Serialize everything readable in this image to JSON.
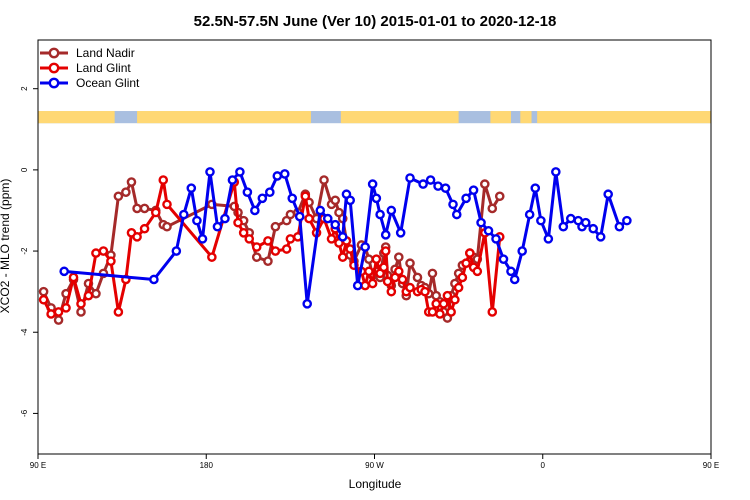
{
  "chart_data": {
    "type": "line",
    "title": "52.5N-57.5N June (Ver 10)   2015-01-01 to 2020-12-18",
    "xlabel": "Longitude",
    "ylabel": "XCO2 - MLO trend (ppm)",
    "xlim": [
      90,
      450
    ],
    "ylim": [
      -7,
      3.2
    ],
    "x_ticks": [
      {
        "value": 90,
        "label": "90 E"
      },
      {
        "value": 180,
        "label": "180"
      },
      {
        "value": 270,
        "label": "90 W"
      },
      {
        "value": 360,
        "label": "0"
      },
      {
        "value": 450,
        "label": "90 E"
      },
      {
        "value": 540,
        "label": "180"
      }
    ],
    "y_ticks": [
      2,
      0,
      -2,
      -4,
      -6
    ],
    "grid": false,
    "legend_position": "top-left",
    "land_sea_band": {
      "y_range": [
        1.15,
        1.45
      ],
      "ocean_color": "#a9bfe0",
      "land_color": "#ffd874",
      "land_segments": [
        [
          90,
          131
        ],
        [
          143,
          236
        ],
        [
          252,
          315
        ],
        [
          332,
          343
        ],
        [
          348,
          354
        ],
        [
          357,
          489
        ],
        [
          500,
          532
        ]
      ]
    },
    "series": [
      {
        "name": "Land Nadir",
        "color": "#a52a2a",
        "x": [
          93,
          97,
          101,
          105,
          109,
          113,
          117,
          121,
          125,
          129,
          133,
          137,
          140,
          143,
          147,
          153,
          157,
          159,
          183,
          195,
          197,
          200,
          203,
          207,
          213,
          217,
          223,
          225,
          229,
          233,
          235,
          239,
          243,
          247,
          249,
          251,
          253,
          255,
          257,
          259,
          263,
          265,
          267,
          269,
          271,
          273,
          275,
          276,
          277,
          279,
          281,
          283,
          285,
          287,
          289,
          293,
          295,
          297,
          299,
          301,
          303,
          305,
          307,
          309,
          311,
          313,
          315,
          317,
          319,
          321,
          323,
          325,
          329,
          333,
          337
        ],
        "y": [
          -3.0,
          -3.4,
          -3.7,
          -3.05,
          -2.7,
          -3.5,
          -2.8,
          -3.05,
          -2.55,
          -2.1,
          -0.65,
          -0.55,
          -0.3,
          -0.95,
          -0.95,
          -1.0,
          -1.35,
          -1.4,
          -0.85,
          -0.9,
          -1.05,
          -1.25,
          -1.55,
          -2.15,
          -2.25,
          -1.4,
          -1.25,
          -1.1,
          -1.05,
          -0.6,
          -0.8,
          -1.2,
          -0.25,
          -0.85,
          -0.75,
          -1.05,
          -1.2,
          -1.75,
          -2.1,
          -2.25,
          -1.85,
          -1.9,
          -2.2,
          -2.6,
          -2.5,
          -2.65,
          -2.05,
          -1.9,
          -2.6,
          -2.85,
          -2.45,
          -2.15,
          -2.8,
          -3.1,
          -2.3,
          -2.65,
          -2.85,
          -2.9,
          -3.05,
          -2.55,
          -3.1,
          -3.25,
          -3.5,
          -3.65,
          -3.1,
          -2.8,
          -2.55,
          -2.35,
          -2.3,
          -2.05,
          -2.15,
          -2.2,
          -0.35,
          -0.95,
          -0.65
        ]
      },
      {
        "name": "Land Glint",
        "color": "#e40000",
        "x": [
          93,
          97,
          101,
          105,
          109,
          113,
          117,
          121,
          125,
          129,
          133,
          137,
          140,
          143,
          147,
          153,
          157,
          159,
          183,
          195,
          197,
          200,
          203,
          207,
          213,
          217,
          223,
          225,
          229,
          233,
          235,
          239,
          243,
          247,
          249,
          251,
          253,
          255,
          257,
          259,
          263,
          265,
          267,
          269,
          271,
          273,
          275,
          276,
          277,
          279,
          281,
          283,
          285,
          287,
          289,
          293,
          295,
          297,
          299,
          301,
          303,
          305,
          307,
          309,
          311,
          313,
          315,
          317,
          319,
          321,
          323,
          325,
          329,
          333,
          337
        ],
        "y": [
          -3.2,
          -3.55,
          -3.5,
          -3.4,
          -2.65,
          -3.3,
          -3.1,
          -2.05,
          -2.0,
          -2.25,
          -3.5,
          -2.7,
          -1.55,
          -1.65,
          -1.45,
          -1.05,
          -0.25,
          -0.85,
          -2.15,
          -0.3,
          -1.3,
          -1.55,
          -1.7,
          -1.9,
          -1.75,
          -2.0,
          -1.95,
          -1.7,
          -1.65,
          -0.65,
          -1.2,
          -1.55,
          -1.2,
          -1.7,
          -1.45,
          -1.8,
          -2.15,
          -1.75,
          -1.95,
          -2.35,
          -2.5,
          -2.85,
          -2.5,
          -2.8,
          -2.2,
          -2.55,
          -2.4,
          -2.0,
          -2.75,
          -3.0,
          -2.65,
          -2.5,
          -2.7,
          -3.0,
          -2.9,
          -3.0,
          -2.95,
          -3.0,
          -3.5,
          -3.5,
          -3.3,
          -3.55,
          -3.3,
          -3.1,
          -3.5,
          -3.2,
          -2.9,
          -2.65,
          -2.3,
          -2.05,
          -2.4,
          -2.5,
          -1.55,
          -3.5,
          -1.65
        ]
      },
      {
        "name": "Ocean Glint",
        "color": "#0000ee",
        "x": [
          104,
          152,
          164,
          168,
          172,
          175,
          178,
          182,
          186,
          190,
          194,
          198,
          202,
          206,
          210,
          214,
          218,
          222,
          226,
          230,
          234,
          241,
          245,
          249,
          253,
          255,
          257,
          261,
          265,
          269,
          271,
          273,
          276,
          279,
          284,
          289,
          296,
          300,
          304,
          308,
          312,
          314,
          319,
          323,
          327,
          331,
          335,
          339,
          343,
          345,
          349,
          353,
          356,
          359,
          363,
          367,
          371,
          375,
          379,
          381,
          383,
          387,
          391,
          395,
          401,
          405
        ],
        "y": [
          -2.5,
          -2.7,
          -2.0,
          -1.1,
          -0.45,
          -1.25,
          -1.7,
          -0.05,
          -1.4,
          -1.2,
          -0.25,
          -0.05,
          -0.55,
          -1.0,
          -0.7,
          -0.55,
          -0.15,
          -0.1,
          -0.7,
          -1.15,
          -3.3,
          -1.0,
          -1.2,
          -1.35,
          -1.65,
          -0.6,
          -0.75,
          -2.85,
          -1.9,
          -0.35,
          -0.7,
          -1.1,
          -1.6,
          -1.0,
          -1.55,
          -0.2,
          -0.35,
          -0.25,
          -0.4,
          -0.45,
          -0.85,
          -1.1,
          -0.7,
          -0.5,
          -1.3,
          -1.5,
          -1.7,
          -2.2,
          -2.5,
          -2.7,
          -2.0,
          -1.1,
          -0.45,
          -1.25,
          -1.7,
          -0.05,
          -1.4,
          -1.2,
          -1.25,
          -1.4,
          -1.3,
          -1.45,
          -1.65,
          -0.6,
          -1.4,
          -1.25
        ]
      }
    ]
  }
}
